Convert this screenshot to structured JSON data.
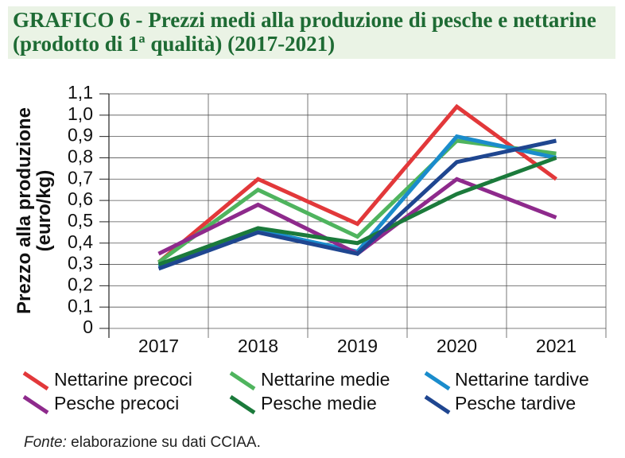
{
  "chart_data": {
    "type": "line",
    "title": "GRAFICO 6 - Prezzi medi alla produzione di pesche e nettarine (prodotto di 1ª qualità) (2017-2021)",
    "y_label": "Prezzo alla produzione (euro/kg)",
    "categories": [
      "2017",
      "2018",
      "2019",
      "2020",
      "2021"
    ],
    "series": [
      {
        "name": "Nettarine precoci",
        "color": "#e2383a",
        "values": [
          0.31,
          0.7,
          0.49,
          1.04,
          0.7
        ]
      },
      {
        "name": "Nettarine medie",
        "color": "#4fb45e",
        "values": [
          0.31,
          0.65,
          0.43,
          0.88,
          0.82
        ]
      },
      {
        "name": "Nettarine tardive",
        "color": "#1a8ccc",
        "values": [
          0.29,
          0.46,
          0.36,
          0.9,
          0.8
        ]
      },
      {
        "name": "Pesche precoci",
        "color": "#8e2a8c",
        "values": [
          0.35,
          0.58,
          0.35,
          0.7,
          0.52
        ]
      },
      {
        "name": "Pesche medie",
        "color": "#1b7a3b",
        "values": [
          0.3,
          0.47,
          0.4,
          0.63,
          0.8
        ]
      },
      {
        "name": "Pesche tardive",
        "color": "#1f4690",
        "values": [
          0.28,
          0.45,
          0.35,
          0.78,
          0.88
        ]
      }
    ],
    "ylim": [
      0,
      1.1
    ],
    "yticks": [
      0,
      {
        "value": 0.1,
        "label": "0,1"
      },
      {
        "value": 0.2,
        "label": "0,2"
      },
      {
        "value": 0.3,
        "label": "0,3"
      },
      {
        "value": 0.4,
        "label": "0,4"
      },
      {
        "value": 0.5,
        "label": "0,5"
      },
      {
        "value": 0.6,
        "label": "0,6"
      },
      {
        "value": 0.7,
        "label": "0,7"
      },
      {
        "value": 0.8,
        "label": "0,8"
      },
      {
        "value": 0.9,
        "label": "0,9"
      },
      {
        "value": 1.0,
        "label": "1,0"
      },
      {
        "value": 1.1,
        "label": "1,1"
      }
    ],
    "grid": true,
    "source_label": "Fonte:",
    "source": "elaborazione su dati CCIAA."
  }
}
